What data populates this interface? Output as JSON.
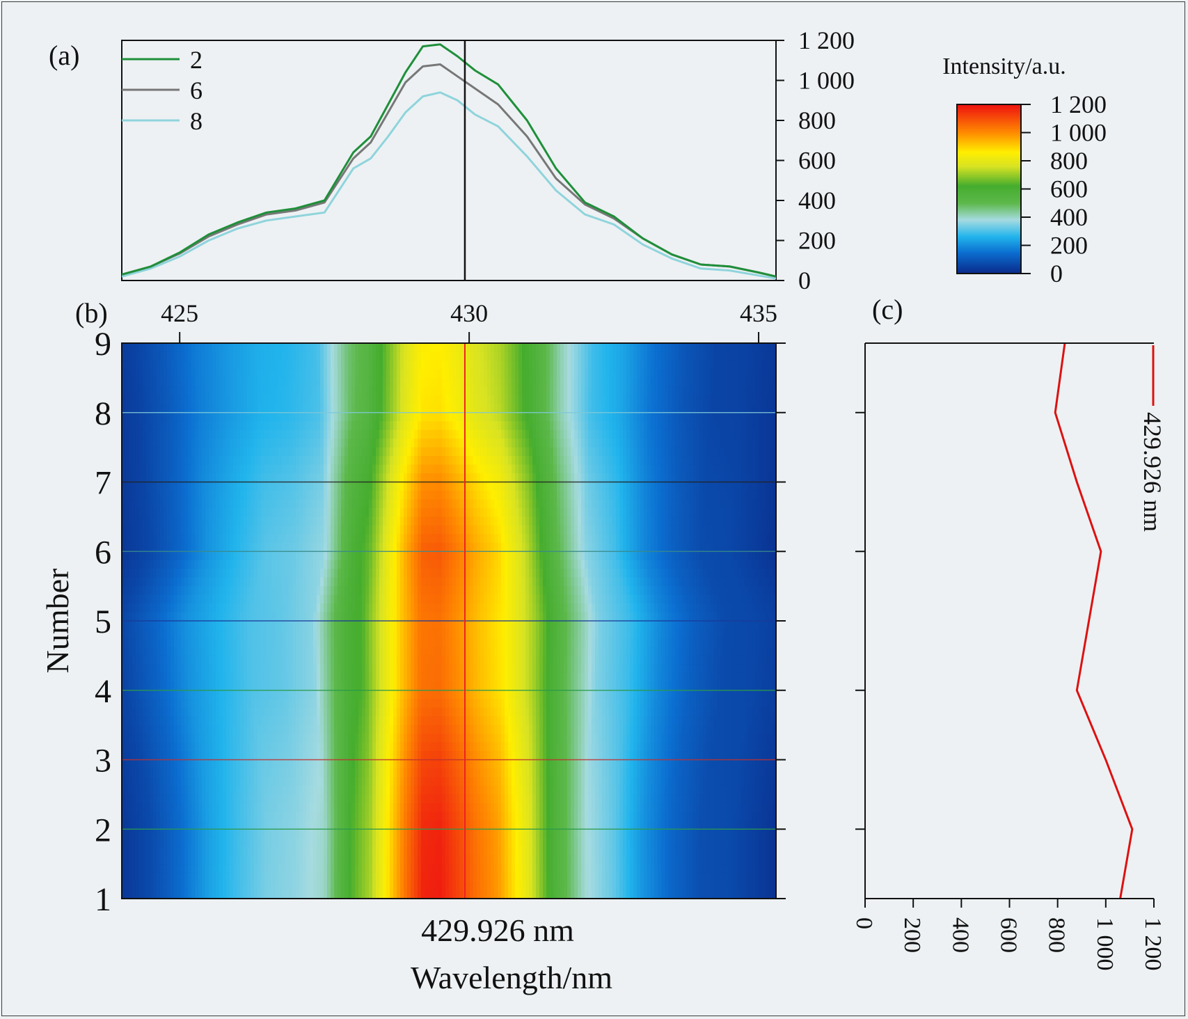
{
  "chart_data": [
    {
      "panel": "a",
      "type": "line",
      "panel_label": "(a)",
      "xlim": [
        424.0,
        435.3
      ],
      "ylim": [
        0,
        1200
      ],
      "y_ticks": [
        "0",
        "200",
        "400",
        "600",
        "800",
        "1 000",
        "1 200"
      ],
      "y_tick_values": [
        0,
        200,
        400,
        600,
        800,
        1000,
        1200
      ],
      "y_axis_side": "right",
      "cursor_x": 429.926,
      "legend": "top-left",
      "x": [
        424.0,
        424.5,
        425.0,
        425.5,
        426.0,
        426.5,
        427.0,
        427.5,
        428.0,
        428.3,
        428.6,
        428.9,
        429.2,
        429.5,
        429.8,
        430.1,
        430.5,
        431.0,
        431.5,
        432.0,
        432.5,
        433.0,
        433.5,
        434.0,
        434.5,
        435.0,
        435.3
      ],
      "series": [
        {
          "name": "2",
          "color": "#1f8f3a",
          "values": [
            30,
            70,
            140,
            230,
            290,
            340,
            360,
            400,
            640,
            720,
            880,
            1040,
            1170,
            1180,
            1120,
            1050,
            980,
            800,
            560,
            390,
            320,
            210,
            130,
            80,
            70,
            40,
            20
          ]
        },
        {
          "name": "6",
          "color": "#777777",
          "values": [
            30,
            70,
            135,
            220,
            280,
            330,
            350,
            390,
            610,
            690,
            840,
            990,
            1070,
            1080,
            1020,
            960,
            880,
            720,
            510,
            380,
            310,
            210,
            130,
            80,
            70,
            40,
            20
          ]
        },
        {
          "name": "8",
          "color": "#8fd4dc",
          "values": [
            20,
            60,
            120,
            200,
            260,
            300,
            320,
            340,
            560,
            610,
            720,
            840,
            920,
            940,
            900,
            830,
            770,
            620,
            450,
            330,
            280,
            180,
            110,
            60,
            50,
            25,
            10
          ]
        }
      ]
    },
    {
      "panel": "b",
      "type": "heatmap",
      "panel_label": "(b)",
      "xlabel": "Wavelength/nm",
      "ylabel": "Number",
      "x_ticks": [
        "425",
        "430",
        "435"
      ],
      "x_tick_values": [
        425,
        430,
        435
      ],
      "y_ticks": [
        "1",
        "2",
        "3",
        "4",
        "5",
        "6",
        "7",
        "8",
        "9"
      ],
      "y_tick_values": [
        1,
        2,
        3,
        4,
        5,
        6,
        7,
        8,
        9
      ],
      "xlim": [
        424.0,
        435.3
      ],
      "ylim": [
        1,
        9
      ],
      "cursor_x": 429.926,
      "cursor_label": "429.926 nm",
      "colorbar": {
        "title": "Intensity/a.u.",
        "ticks": [
          "0",
          "200",
          "400",
          "600",
          "800",
          "1 000",
          "1 200"
        ],
        "tick_values": [
          0,
          200,
          400,
          600,
          800,
          1000,
          1200
        ],
        "stops": [
          {
            "v": 0,
            "c": "#0a2a8a"
          },
          {
            "v": 150,
            "c": "#0b6fd1"
          },
          {
            "v": 260,
            "c": "#21b4ec"
          },
          {
            "v": 380,
            "c": "#a6dbe0"
          },
          {
            "v": 500,
            "c": "#5cb84a"
          },
          {
            "v": 620,
            "c": "#45ad2e"
          },
          {
            "v": 760,
            "c": "#d8e322"
          },
          {
            "v": 860,
            "c": "#ffee00"
          },
          {
            "v": 1000,
            "c": "#ff8a00"
          },
          {
            "v": 1200,
            "c": "#ee1111"
          }
        ]
      },
      "row_peak": [
        1180,
        1170,
        1120,
        1050,
        1040,
        1080,
        1000,
        880,
        860
      ],
      "row_width": [
        1.0,
        1.0,
        1.03,
        1.08,
        1.1,
        1.0,
        1.02,
        1.04,
        1.06
      ],
      "row_lines": [
        {
          "row": 2,
          "color": "#2a9a4a"
        },
        {
          "row": 3,
          "color": "#c03030"
        },
        {
          "row": 4,
          "color": "#2a9a4a"
        },
        {
          "row": 5,
          "color": "#1a3a9a"
        },
        {
          "row": 6,
          "color": "#3a8a8a"
        },
        {
          "row": 7,
          "color": "#222222"
        },
        {
          "row": 8,
          "color": "#7fc8d8"
        },
        {
          "row": 9,
          "color": "#d8b040"
        }
      ]
    },
    {
      "panel": "c",
      "type": "line",
      "panel_label": "(c)",
      "orientation": "vertical",
      "xlim": [
        0,
        1200
      ],
      "x_ticks": [
        "0",
        "200",
        "400",
        "600",
        "800",
        "1 000",
        "1 200"
      ],
      "x_tick_values": [
        0,
        200,
        400,
        600,
        800,
        1000,
        1200
      ],
      "y": [
        1,
        2,
        3,
        4,
        5,
        6,
        7,
        8,
        9
      ],
      "ylim": [
        1,
        9
      ],
      "series": [
        {
          "name": "429.926 nm",
          "color": "#dd1111",
          "values": [
            1060,
            1110,
            1000,
            880,
            930,
            980,
            880,
            790,
            830
          ]
        }
      ],
      "legend": "top-right"
    }
  ]
}
